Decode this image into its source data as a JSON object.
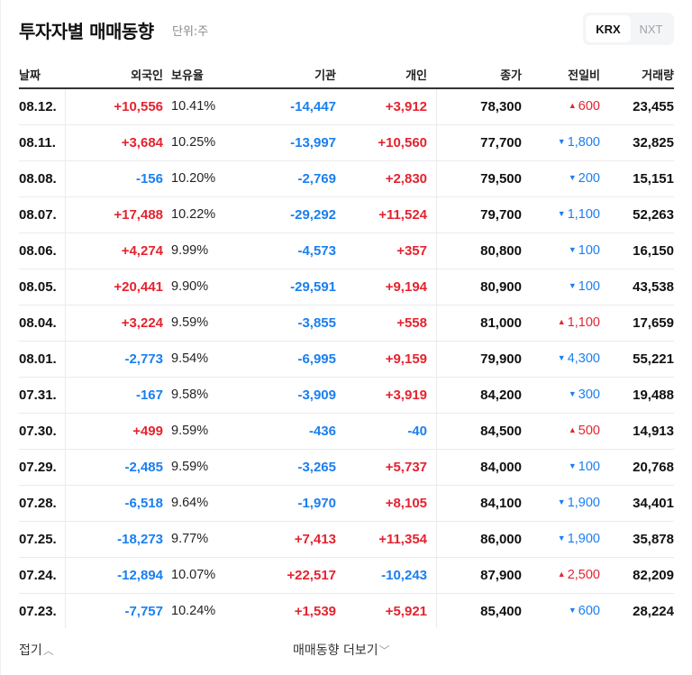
{
  "header": {
    "title": "투자자별 매매동향",
    "unit": "단위:주"
  },
  "market_toggle": {
    "options": [
      {
        "label": "KRX",
        "active": true
      },
      {
        "label": "NXT",
        "active": false
      }
    ]
  },
  "table": {
    "columns": {
      "date": "날짜",
      "foreign": "외국인",
      "ratio": "보유율",
      "institution": "기관",
      "individual": "개인",
      "close": "종가",
      "change": "전일비",
      "volume": "거래량"
    },
    "rows": [
      {
        "date": "08.12.",
        "foreign": "+10,556",
        "foreign_dir": "up",
        "ratio": "10.41%",
        "institution": "-14,447",
        "institution_dir": "down",
        "individual": "+3,912",
        "individual_dir": "up",
        "close": "78,300",
        "change_icon": "▲",
        "change": "600",
        "change_dir": "up",
        "volume": "23,455"
      },
      {
        "date": "08.11.",
        "foreign": "+3,684",
        "foreign_dir": "up",
        "ratio": "10.25%",
        "institution": "-13,997",
        "institution_dir": "down",
        "individual": "+10,560",
        "individual_dir": "up",
        "close": "77,700",
        "change_icon": "▼",
        "change": "1,800",
        "change_dir": "down",
        "volume": "32,825"
      },
      {
        "date": "08.08.",
        "foreign": "-156",
        "foreign_dir": "down",
        "ratio": "10.20%",
        "institution": "-2,769",
        "institution_dir": "down",
        "individual": "+2,830",
        "individual_dir": "up",
        "close": "79,500",
        "change_icon": "▼",
        "change": "200",
        "change_dir": "down",
        "volume": "15,151"
      },
      {
        "date": "08.07.",
        "foreign": "+17,488",
        "foreign_dir": "up",
        "ratio": "10.22%",
        "institution": "-29,292",
        "institution_dir": "down",
        "individual": "+11,524",
        "individual_dir": "up",
        "close": "79,700",
        "change_icon": "▼",
        "change": "1,100",
        "change_dir": "down",
        "volume": "52,263"
      },
      {
        "date": "08.06.",
        "foreign": "+4,274",
        "foreign_dir": "up",
        "ratio": "9.99%",
        "institution": "-4,573",
        "institution_dir": "down",
        "individual": "+357",
        "individual_dir": "up",
        "close": "80,800",
        "change_icon": "▼",
        "change": "100",
        "change_dir": "down",
        "volume": "16,150"
      },
      {
        "date": "08.05.",
        "foreign": "+20,441",
        "foreign_dir": "up",
        "ratio": "9.90%",
        "institution": "-29,591",
        "institution_dir": "down",
        "individual": "+9,194",
        "individual_dir": "up",
        "close": "80,900",
        "change_icon": "▼",
        "change": "100",
        "change_dir": "down",
        "volume": "43,538"
      },
      {
        "date": "08.04.",
        "foreign": "+3,224",
        "foreign_dir": "up",
        "ratio": "9.59%",
        "institution": "-3,855",
        "institution_dir": "down",
        "individual": "+558",
        "individual_dir": "up",
        "close": "81,000",
        "change_icon": "▲",
        "change": "1,100",
        "change_dir": "up",
        "volume": "17,659"
      },
      {
        "date": "08.01.",
        "foreign": "-2,773",
        "foreign_dir": "down",
        "ratio": "9.54%",
        "institution": "-6,995",
        "institution_dir": "down",
        "individual": "+9,159",
        "individual_dir": "up",
        "close": "79,900",
        "change_icon": "▼",
        "change": "4,300",
        "change_dir": "down",
        "volume": "55,221"
      },
      {
        "date": "07.31.",
        "foreign": "-167",
        "foreign_dir": "down",
        "ratio": "9.58%",
        "institution": "-3,909",
        "institution_dir": "down",
        "individual": "+3,919",
        "individual_dir": "up",
        "close": "84,200",
        "change_icon": "▼",
        "change": "300",
        "change_dir": "down",
        "volume": "19,488"
      },
      {
        "date": "07.30.",
        "foreign": "+499",
        "foreign_dir": "up",
        "ratio": "9.59%",
        "institution": "-436",
        "institution_dir": "down",
        "individual": "-40",
        "individual_dir": "down",
        "close": "84,500",
        "change_icon": "▲",
        "change": "500",
        "change_dir": "up",
        "volume": "14,913"
      },
      {
        "date": "07.29.",
        "foreign": "-2,485",
        "foreign_dir": "down",
        "ratio": "9.59%",
        "institution": "-3,265",
        "institution_dir": "down",
        "individual": "+5,737",
        "individual_dir": "up",
        "close": "84,000",
        "change_icon": "▼",
        "change": "100",
        "change_dir": "down",
        "volume": "20,768"
      },
      {
        "date": "07.28.",
        "foreign": "-6,518",
        "foreign_dir": "down",
        "ratio": "9.64%",
        "institution": "-1,970",
        "institution_dir": "down",
        "individual": "+8,105",
        "individual_dir": "up",
        "close": "84,100",
        "change_icon": "▼",
        "change": "1,900",
        "change_dir": "down",
        "volume": "34,401"
      },
      {
        "date": "07.25.",
        "foreign": "-18,273",
        "foreign_dir": "down",
        "ratio": "9.77%",
        "institution": "+7,413",
        "institution_dir": "up",
        "individual": "+11,354",
        "individual_dir": "up",
        "close": "86,000",
        "change_icon": "▼",
        "change": "1,900",
        "change_dir": "down",
        "volume": "35,878"
      },
      {
        "date": "07.24.",
        "foreign": "-12,894",
        "foreign_dir": "down",
        "ratio": "10.07%",
        "institution": "+22,517",
        "institution_dir": "up",
        "individual": "-10,243",
        "individual_dir": "down",
        "close": "87,900",
        "change_icon": "▲",
        "change": "2,500",
        "change_dir": "up",
        "volume": "82,209"
      },
      {
        "date": "07.23.",
        "foreign": "-7,757",
        "foreign_dir": "down",
        "ratio": "10.24%",
        "institution": "+1,539",
        "institution_dir": "up",
        "individual": "+5,921",
        "individual_dir": "up",
        "close": "85,400",
        "change_icon": "▼",
        "change": "600",
        "change_dir": "down",
        "volume": "28,224"
      }
    ]
  },
  "footer": {
    "collapse_label": "접기",
    "collapse_icon": "^",
    "more_label": "매매동향 더보기",
    "more_icon": "v"
  },
  "colors": {
    "up": "#e5232f",
    "down": "#1a7ff0",
    "text": "#111111",
    "header_rule": "#333333",
    "row_divider": "#ebebeb",
    "toggle_bg": "#f4f5f7"
  }
}
